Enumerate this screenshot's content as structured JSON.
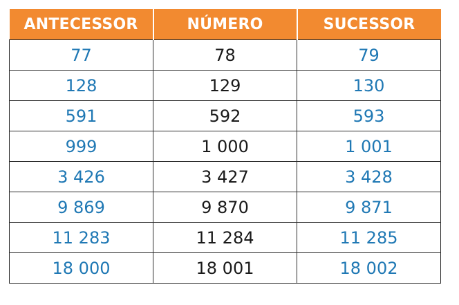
{
  "table": {
    "headers": [
      "ANTECESSOR",
      "NÚMERO",
      "SUCESSOR"
    ],
    "rows": [
      [
        "77",
        "78",
        "79"
      ],
      [
        "128",
        "129",
        "130"
      ],
      [
        "591",
        "592",
        "593"
      ],
      [
        "999",
        "1 000",
        "1 001"
      ],
      [
        "3 426",
        "3 427",
        "3 428"
      ],
      [
        "9 869",
        "9 870",
        "9 871"
      ],
      [
        "11 283",
        "11 284",
        "11 285"
      ],
      [
        "18 000",
        "18 001",
        "18 002"
      ]
    ]
  },
  "colors": {
    "header_background": "#f28a30",
    "header_text": "#ffffff",
    "answer_text": "#1f78b4",
    "given_text": "#1a1a1a",
    "border": "#2b2b2b"
  }
}
